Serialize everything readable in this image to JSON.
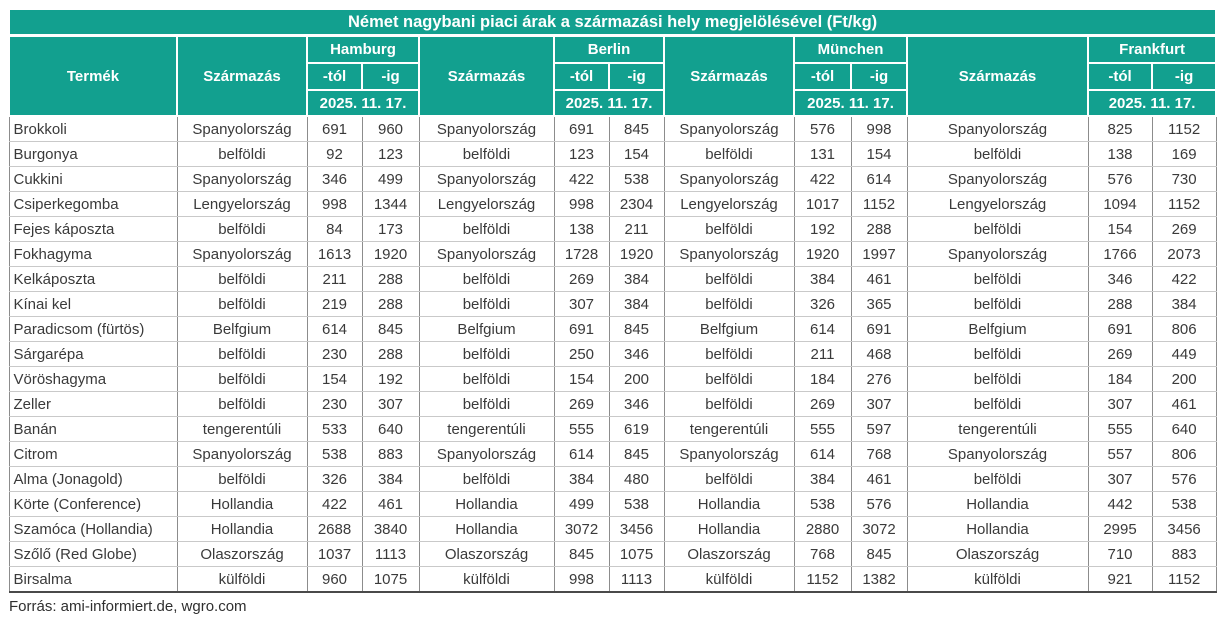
{
  "title": "Német nagybani piaci árak a származási hely megjelölésével (Ft/kg)",
  "header": {
    "product_col": "Termék",
    "origin_col": "Származás",
    "from_col": "-tól",
    "to_col": "-ig",
    "date": "2025. 11. 17.",
    "markets": [
      "Hamburg",
      "Berlin",
      "München",
      "Frankfurt"
    ]
  },
  "rows": [
    {
      "product": "Brokkoli",
      "markets": [
        {
          "origin": "Spanyolország",
          "from": "691",
          "to": "960"
        },
        {
          "origin": "Spanyolország",
          "from": "691",
          "to": "845"
        },
        {
          "origin": "Spanyolország",
          "from": "576",
          "to": "998"
        },
        {
          "origin": "Spanyolország",
          "from": "825",
          "to": "1152"
        }
      ]
    },
    {
      "product": "Burgonya",
      "markets": [
        {
          "origin": "belföldi",
          "from": "92",
          "to": "123"
        },
        {
          "origin": "belföldi",
          "from": "123",
          "to": "154"
        },
        {
          "origin": "belföldi",
          "from": "131",
          "to": "154"
        },
        {
          "origin": "belföldi",
          "from": "138",
          "to": "169"
        }
      ]
    },
    {
      "product": "Cukkini",
      "markets": [
        {
          "origin": "Spanyolország",
          "from": "346",
          "to": "499"
        },
        {
          "origin": "Spanyolország",
          "from": "422",
          "to": "538"
        },
        {
          "origin": "Spanyolország",
          "from": "422",
          "to": "614"
        },
        {
          "origin": "Spanyolország",
          "from": "576",
          "to": "730"
        }
      ]
    },
    {
      "product": "Csiperkegomba",
      "markets": [
        {
          "origin": "Lengyelország",
          "from": "998",
          "to": "1344"
        },
        {
          "origin": "Lengyelország",
          "from": "998",
          "to": "2304"
        },
        {
          "origin": "Lengyelország",
          "from": "1017",
          "to": "1152"
        },
        {
          "origin": "Lengyelország",
          "from": "1094",
          "to": "1152"
        }
      ]
    },
    {
      "product": "Fejes káposzta",
      "markets": [
        {
          "origin": "belföldi",
          "from": "84",
          "to": "173"
        },
        {
          "origin": "belföldi",
          "from": "138",
          "to": "211"
        },
        {
          "origin": "belföldi",
          "from": "192",
          "to": "288"
        },
        {
          "origin": "belföldi",
          "from": "154",
          "to": "269"
        }
      ]
    },
    {
      "product": "Fokhagyma",
      "markets": [
        {
          "origin": "Spanyolország",
          "from": "1613",
          "to": "1920"
        },
        {
          "origin": "Spanyolország",
          "from": "1728",
          "to": "1920"
        },
        {
          "origin": "Spanyolország",
          "from": "1920",
          "to": "1997"
        },
        {
          "origin": "Spanyolország",
          "from": "1766",
          "to": "2073"
        }
      ]
    },
    {
      "product": "Kelkáposzta",
      "markets": [
        {
          "origin": "belföldi",
          "from": "211",
          "to": "288"
        },
        {
          "origin": "belföldi",
          "from": "269",
          "to": "384"
        },
        {
          "origin": "belföldi",
          "from": "384",
          "to": "461"
        },
        {
          "origin": "belföldi",
          "from": "346",
          "to": "422"
        }
      ]
    },
    {
      "product": "Kínai kel",
      "markets": [
        {
          "origin": "belföldi",
          "from": "219",
          "to": "288"
        },
        {
          "origin": "belföldi",
          "from": "307",
          "to": "384"
        },
        {
          "origin": "belföldi",
          "from": "326",
          "to": "365"
        },
        {
          "origin": "belföldi",
          "from": "288",
          "to": "384"
        }
      ]
    },
    {
      "product": "Paradicsom (fürtös)",
      "markets": [
        {
          "origin": "Belfgium",
          "from": "614",
          "to": "845"
        },
        {
          "origin": "Belfgium",
          "from": "691",
          "to": "845"
        },
        {
          "origin": "Belfgium",
          "from": "614",
          "to": "691"
        },
        {
          "origin": "Belfgium",
          "from": "691",
          "to": "806"
        }
      ]
    },
    {
      "product": "Sárgarépa",
      "markets": [
        {
          "origin": "belföldi",
          "from": "230",
          "to": "288"
        },
        {
          "origin": "belföldi",
          "from": "250",
          "to": "346"
        },
        {
          "origin": "belföldi",
          "from": "211",
          "to": "468"
        },
        {
          "origin": "belföldi",
          "from": "269",
          "to": "449"
        }
      ]
    },
    {
      "product": "Vöröshagyma",
      "markets": [
        {
          "origin": "belföldi",
          "from": "154",
          "to": "192"
        },
        {
          "origin": "belföldi",
          "from": "154",
          "to": "200"
        },
        {
          "origin": "belföldi",
          "from": "184",
          "to": "276"
        },
        {
          "origin": "belföldi",
          "from": "184",
          "to": "200"
        }
      ]
    },
    {
      "product": "Zeller",
      "markets": [
        {
          "origin": "belföldi",
          "from": "230",
          "to": "307"
        },
        {
          "origin": "belföldi",
          "from": "269",
          "to": "346"
        },
        {
          "origin": "belföldi",
          "from": "269",
          "to": "307"
        },
        {
          "origin": "belföldi",
          "from": "307",
          "to": "461"
        }
      ]
    },
    {
      "product": "Banán",
      "markets": [
        {
          "origin": "tengerentúli",
          "from": "533",
          "to": "640"
        },
        {
          "origin": "tengerentúli",
          "from": "555",
          "to": "619"
        },
        {
          "origin": "tengerentúli",
          "from": "555",
          "to": "597"
        },
        {
          "origin": "tengerentúli",
          "from": "555",
          "to": "640"
        }
      ]
    },
    {
      "product": "Citrom",
      "markets": [
        {
          "origin": "Spanyolország",
          "from": "538",
          "to": "883"
        },
        {
          "origin": "Spanyolország",
          "from": "614",
          "to": "845"
        },
        {
          "origin": "Spanyolország",
          "from": "614",
          "to": "768"
        },
        {
          "origin": "Spanyolország",
          "from": "557",
          "to": "806"
        }
      ]
    },
    {
      "product": "Alma (Jonagold)",
      "markets": [
        {
          "origin": "belföldi",
          "from": "326",
          "to": "384"
        },
        {
          "origin": "belföldi",
          "from": "384",
          "to": "480"
        },
        {
          "origin": "belföldi",
          "from": "384",
          "to": "461"
        },
        {
          "origin": "belföldi",
          "from": "307",
          "to": "576"
        }
      ]
    },
    {
      "product": "Körte (Conference)",
      "markets": [
        {
          "origin": "Hollandia",
          "from": "422",
          "to": "461"
        },
        {
          "origin": "Hollandia",
          "from": "499",
          "to": "538"
        },
        {
          "origin": "Hollandia",
          "from": "538",
          "to": "576"
        },
        {
          "origin": "Hollandia",
          "from": "442",
          "to": "538"
        }
      ]
    },
    {
      "product": "Szamóca (Hollandia)",
      "markets": [
        {
          "origin": "Hollandia",
          "from": "2688",
          "to": "3840"
        },
        {
          "origin": "Hollandia",
          "from": "3072",
          "to": "3456"
        },
        {
          "origin": "Hollandia",
          "from": "2880",
          "to": "3072"
        },
        {
          "origin": "Hollandia",
          "from": "2995",
          "to": "3456"
        }
      ]
    },
    {
      "product": "Szőlő (Red Globe)",
      "markets": [
        {
          "origin": "Olaszország",
          "from": "1037",
          "to": "1113"
        },
        {
          "origin": "Olaszország",
          "from": "845",
          "to": "1075"
        },
        {
          "origin": "Olaszország",
          "from": "768",
          "to": "845"
        },
        {
          "origin": "Olaszország",
          "from": "710",
          "to": "883"
        }
      ]
    },
    {
      "product": "Birsalma",
      "markets": [
        {
          "origin": "külföldi",
          "from": "960",
          "to": "1075"
        },
        {
          "origin": "külföldi",
          "from": "998",
          "to": "1113"
        },
        {
          "origin": "külföldi",
          "from": "1152",
          "to": "1382"
        },
        {
          "origin": "külföldi",
          "from": "921",
          "to": "1152"
        }
      ]
    }
  ],
  "footer": "Forrás: ami-informiert.de, wgro.com",
  "colors": {
    "header_bg": "#12a08f",
    "header_text": "#ffffff",
    "body_text": "#3a3a3a"
  }
}
